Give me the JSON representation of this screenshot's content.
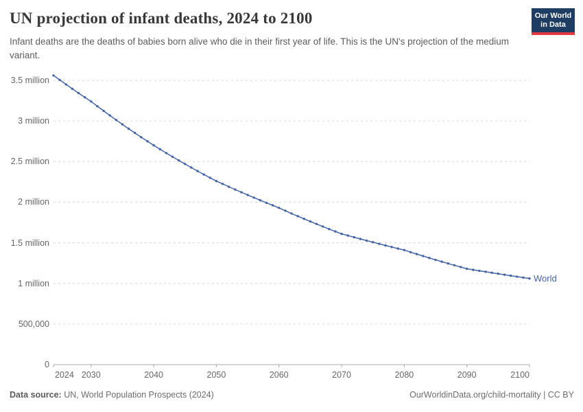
{
  "header": {
    "title": "UN projection of infant deaths, 2024 to 2100",
    "subtitle": "Infant deaths are the deaths of babies born alive who die in their first year of life. This is the UN's projection of the medium variant.",
    "logo": {
      "line1": "Our World",
      "line2": "in Data"
    }
  },
  "chart_data": {
    "type": "line",
    "title": "UN projection of infant deaths, 2024 to 2100",
    "unit": "infant deaths per year, millions",
    "xlim": [
      2024,
      2100
    ],
    "ylim": [
      0,
      3.5
    ],
    "grid": "horizontal-dashed",
    "legend_position": "end-of-line-label",
    "x_ticks": [
      2024,
      2030,
      2040,
      2050,
      2060,
      2070,
      2080,
      2090,
      2100
    ],
    "y_ticks": [
      {
        "value": 0,
        "label": "0"
      },
      {
        "value": 0.5,
        "label": "500,000"
      },
      {
        "value": 1,
        "label": "1 million"
      },
      {
        "value": 1.5,
        "label": "1.5 million"
      },
      {
        "value": 2,
        "label": "2 million"
      },
      {
        "value": 2.5,
        "label": "2.5 million"
      },
      {
        "value": 3,
        "label": "3 million"
      },
      {
        "value": 3.5,
        "label": "3.5 million"
      }
    ],
    "series": [
      {
        "name": "World",
        "color": "#4464A5",
        "x": [
          2024,
          2025,
          2026,
          2027,
          2028,
          2029,
          2030,
          2031,
          2032,
          2033,
          2034,
          2035,
          2036,
          2037,
          2038,
          2039,
          2040,
          2041,
          2042,
          2043,
          2044,
          2045,
          2046,
          2047,
          2048,
          2049,
          2050,
          2051,
          2052,
          2053,
          2054,
          2055,
          2056,
          2057,
          2058,
          2059,
          2060,
          2061,
          2062,
          2063,
          2064,
          2065,
          2066,
          2067,
          2068,
          2069,
          2070,
          2071,
          2072,
          2073,
          2074,
          2075,
          2076,
          2077,
          2078,
          2079,
          2080,
          2081,
          2082,
          2083,
          2084,
          2085,
          2086,
          2087,
          2088,
          2089,
          2090,
          2091,
          2092,
          2093,
          2094,
          2095,
          2096,
          2097,
          2098,
          2099,
          2100
        ],
        "values": [
          3.56,
          3.505,
          3.45,
          3.396,
          3.343,
          3.291,
          3.24,
          3.181,
          3.124,
          3.068,
          3.012,
          2.958,
          2.904,
          2.852,
          2.8,
          2.75,
          2.7,
          2.652,
          2.605,
          2.559,
          2.514,
          2.47,
          2.426,
          2.383,
          2.341,
          2.3,
          2.26,
          2.225,
          2.19,
          2.156,
          2.122,
          2.089,
          2.056,
          2.024,
          1.992,
          1.961,
          1.93,
          1.895,
          1.861,
          1.828,
          1.795,
          1.763,
          1.731,
          1.7,
          1.669,
          1.639,
          1.61,
          1.589,
          1.568,
          1.547,
          1.527,
          1.507,
          1.487,
          1.467,
          1.448,
          1.429,
          1.41,
          1.385,
          1.361,
          1.337,
          1.313,
          1.29,
          1.267,
          1.245,
          1.223,
          1.201,
          1.18,
          1.167,
          1.155,
          1.143,
          1.131,
          1.119,
          1.107,
          1.095,
          1.083,
          1.072,
          1.06
        ]
      }
    ]
  },
  "footer": {
    "source_label": "Data source:",
    "source": " UN, World Population Prospects (2024)",
    "attribution": "OurWorldinData.org/child-mortality | CC BY"
  },
  "colors": {
    "line": "#4464A5",
    "grid": "#d6d6d6",
    "axis": "#a8a8a8",
    "logo_bg": "#1D3D63",
    "logo_red": "#E23A40"
  }
}
